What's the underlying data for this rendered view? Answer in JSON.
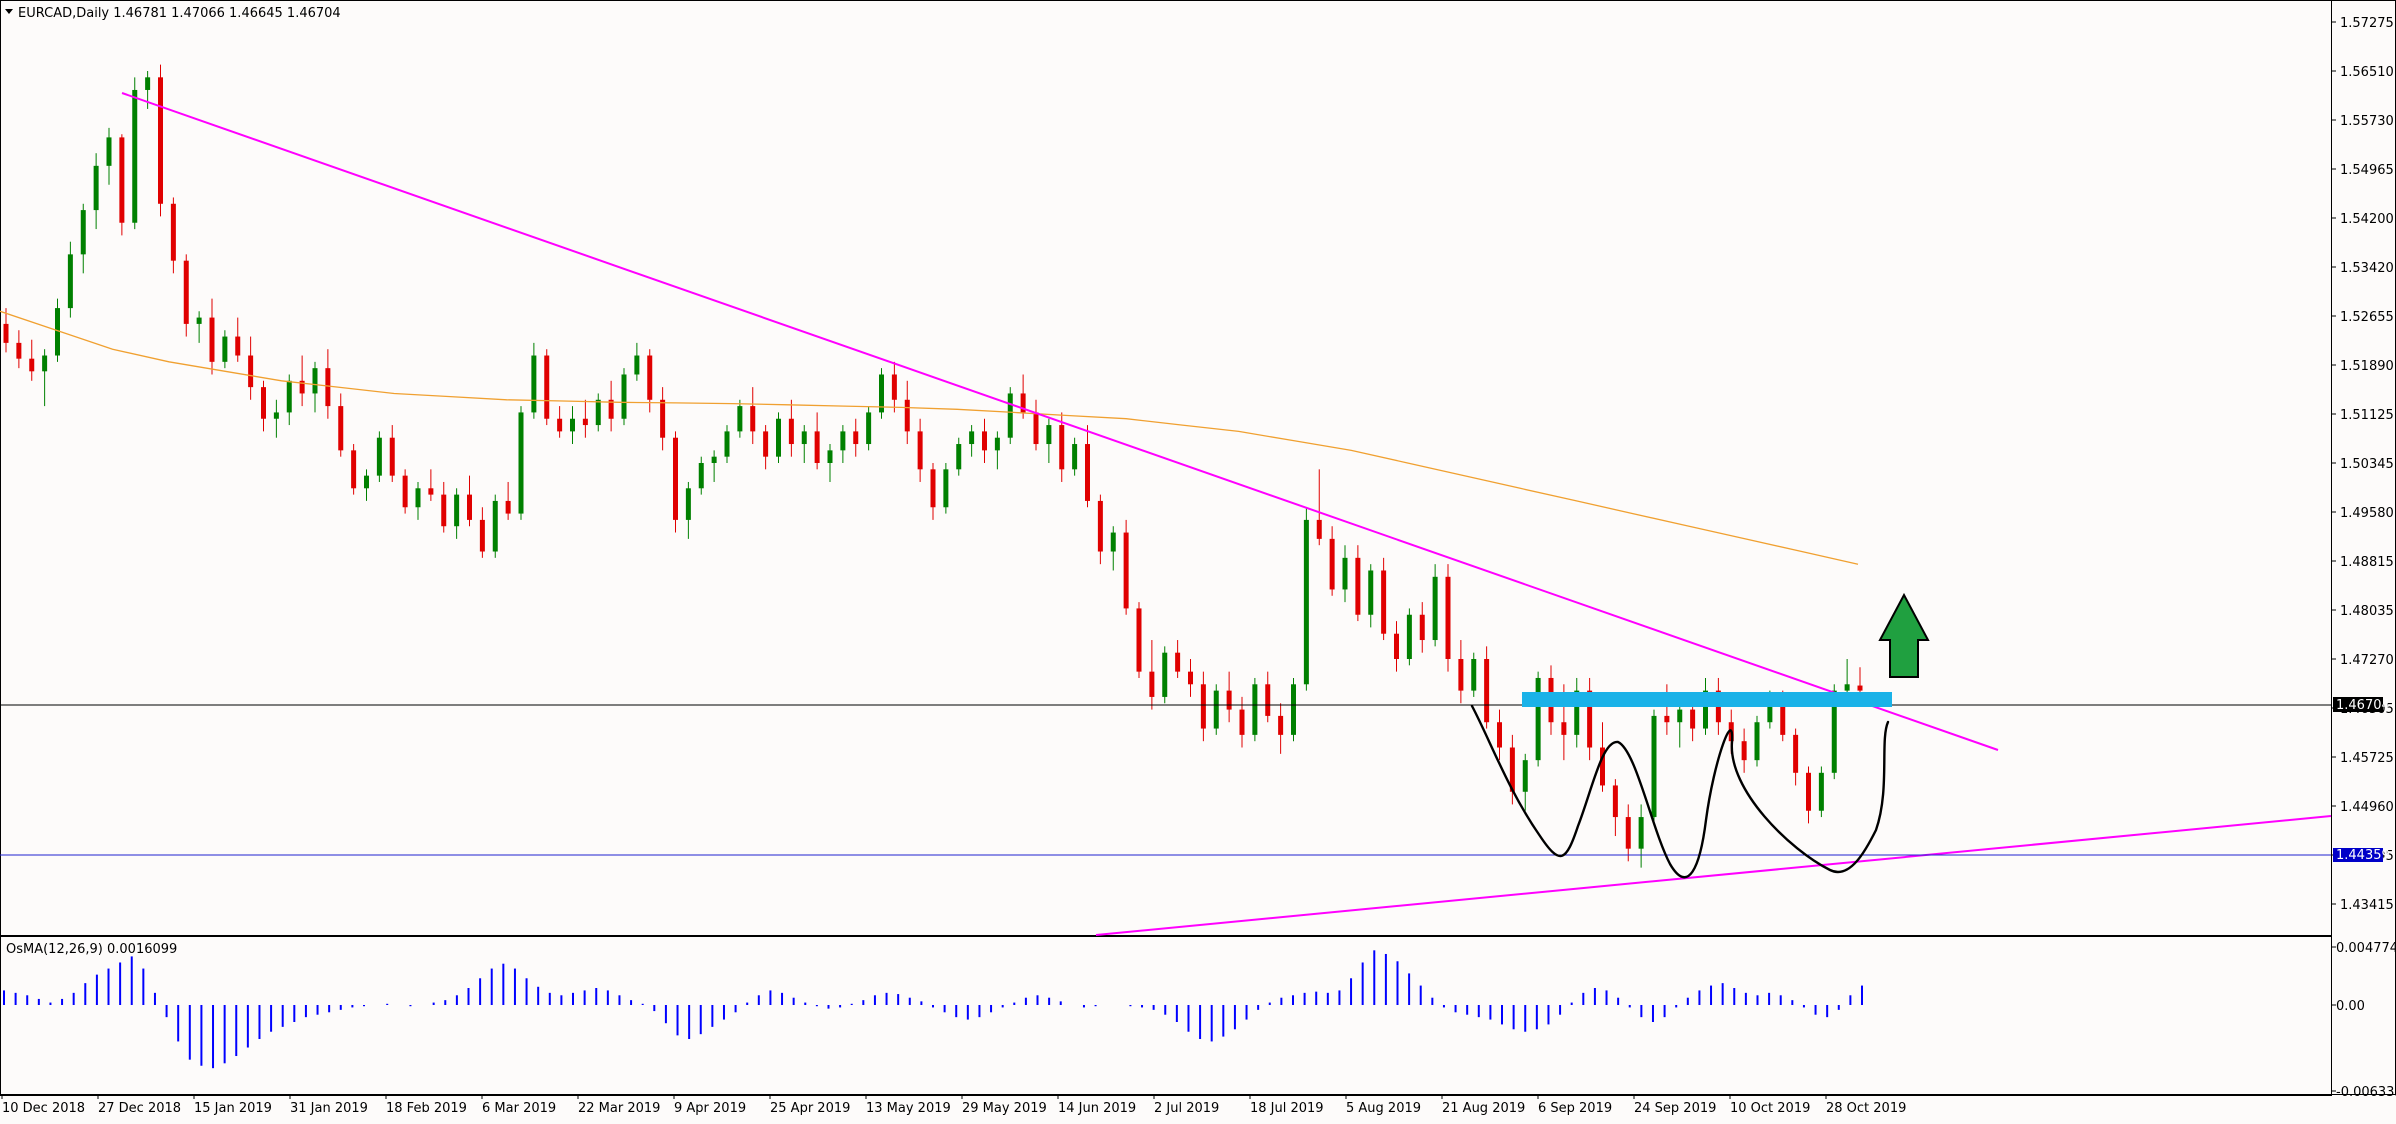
{
  "header": {
    "symbol_line": "EURCAD,Daily  1.46781 1.47066 1.46645 1.46704",
    "menu_icon": "triangle-down-icon"
  },
  "price_axis": {
    "labels": [
      "1.57275",
      "1.56510",
      "1.55730",
      "1.54965",
      "1.54200",
      "1.53420",
      "1.52655",
      "1.51890",
      "1.51125",
      "1.50345",
      "1.49580",
      "1.48815",
      "1.48035",
      "1.47270",
      "1.46505",
      "1.45725",
      "1.44960",
      "1.44195",
      "1.43415"
    ],
    "current_price_tag": "1.46704",
    "horizontal_level_tag": "1.44359"
  },
  "indicator": {
    "label": "OsMA(12,26,9) 0.0016099",
    "axis_labels": [
      "0.0047741",
      "0.00",
      "-0.0063336"
    ],
    "color": "#0000ff"
  },
  "time_axis": {
    "labels": [
      "10 Dec 2018",
      "27 Dec 2018",
      "15 Jan 2019",
      "31 Jan 2019",
      "18 Feb 2019",
      "6 Mar 2019",
      "22 Mar 2019",
      "9 Apr 2019",
      "25 Apr 2019",
      "13 May 2019",
      "29 May 2019",
      "14 Jun 2019",
      "2 Jul 2019",
      "18 Jul 2019",
      "5 Aug 2019",
      "21 Aug 2019",
      "6 Sep 2019",
      "24 Sep 2019",
      "10 Oct 2019",
      "28 Oct 2019"
    ]
  },
  "colors": {
    "bull": "#008000",
    "bear": "#e00000",
    "trendline": "#ff00ff",
    "ma": "#f0a030",
    "resistance_zone": "#1ab2e8",
    "support_level": "#0000ff",
    "arrow": "#20a040"
  },
  "annotations": {
    "breakout_arrow_icon": "up-arrow-icon",
    "pattern": "hand-drawn-curve"
  },
  "chart_data": {
    "type": "candlestick",
    "symbol": "EURCAD",
    "timeframe": "Daily",
    "last": {
      "open": 1.46781,
      "high": 1.47066,
      "low": 1.46645,
      "close": 1.46704
    },
    "ylim": [
      1.43,
      1.58
    ],
    "levels": {
      "current": 1.46704,
      "support": 1.44359
    },
    "ohlc": [
      [
        1.525,
        1.5275,
        1.5205,
        1.522
      ],
      [
        1.522,
        1.524,
        1.518,
        1.5195
      ],
      [
        1.5195,
        1.5225,
        1.516,
        1.5175
      ],
      [
        1.5175,
        1.521,
        1.512,
        1.52
      ],
      [
        1.52,
        1.529,
        1.519,
        1.5275
      ],
      [
        1.5275,
        1.538,
        1.526,
        1.536
      ],
      [
        1.536,
        1.544,
        1.533,
        1.543
      ],
      [
        1.543,
        1.552,
        1.54,
        1.55
      ],
      [
        1.55,
        1.556,
        1.547,
        1.5545
      ],
      [
        1.5545,
        1.555,
        1.539,
        1.541
      ],
      [
        1.541,
        1.564,
        1.54,
        1.562
      ],
      [
        1.562,
        1.565,
        1.559,
        1.564
      ],
      [
        1.564,
        1.566,
        1.542,
        1.544
      ],
      [
        1.544,
        1.545,
        1.533,
        1.535
      ],
      [
        1.535,
        1.536,
        1.523,
        1.525
      ],
      [
        1.525,
        1.527,
        1.522,
        1.526
      ],
      [
        1.526,
        1.529,
        1.517,
        1.519
      ],
      [
        1.519,
        1.524,
        1.518,
        1.523
      ],
      [
        1.523,
        1.526,
        1.519,
        1.52
      ],
      [
        1.52,
        1.523,
        1.513,
        1.515
      ],
      [
        1.515,
        1.516,
        1.508,
        1.51
      ],
      [
        1.51,
        1.513,
        1.507,
        1.511
      ],
      [
        1.511,
        1.517,
        1.509,
        1.516
      ],
      [
        1.516,
        1.52,
        1.512,
        1.514
      ],
      [
        1.514,
        1.519,
        1.511,
        1.518
      ],
      [
        1.518,
        1.521,
        1.51,
        1.512
      ],
      [
        1.512,
        1.514,
        1.504,
        1.505
      ],
      [
        1.505,
        1.506,
        1.498,
        1.499
      ],
      [
        1.499,
        1.502,
        1.497,
        1.501
      ],
      [
        1.501,
        1.508,
        1.5,
        1.507
      ],
      [
        1.507,
        1.509,
        1.5,
        1.501
      ],
      [
        1.501,
        1.502,
        1.495,
        1.496
      ],
      [
        1.496,
        1.5,
        1.494,
        1.499
      ],
      [
        1.499,
        1.502,
        1.497,
        1.498
      ],
      [
        1.498,
        1.5,
        1.492,
        1.493
      ],
      [
        1.493,
        1.499,
        1.491,
        1.498
      ],
      [
        1.498,
        1.501,
        1.493,
        1.494
      ],
      [
        1.494,
        1.496,
        1.488,
        1.489
      ],
      [
        1.489,
        1.498,
        1.488,
        1.497
      ],
      [
        1.497,
        1.5,
        1.494,
        1.495
      ],
      [
        1.495,
        1.512,
        1.494,
        1.511
      ],
      [
        1.511,
        1.522,
        1.51,
        1.52
      ],
      [
        1.52,
        1.521,
        1.509,
        1.51
      ],
      [
        1.51,
        1.512,
        1.507,
        1.508
      ],
      [
        1.508,
        1.512,
        1.506,
        1.51
      ],
      [
        1.51,
        1.513,
        1.507,
        1.509
      ],
      [
        1.509,
        1.514,
        1.508,
        1.513
      ],
      [
        1.513,
        1.516,
        1.508,
        1.51
      ],
      [
        1.51,
        1.518,
        1.509,
        1.517
      ],
      [
        1.517,
        1.522,
        1.516,
        1.52
      ],
      [
        1.52,
        1.521,
        1.511,
        1.513
      ],
      [
        1.513,
        1.515,
        1.505,
        1.507
      ],
      [
        1.507,
        1.508,
        1.492,
        1.494
      ],
      [
        1.494,
        1.5,
        1.491,
        1.499
      ],
      [
        1.499,
        1.504,
        1.498,
        1.503
      ],
      [
        1.503,
        1.505,
        1.5,
        1.504
      ],
      [
        1.504,
        1.509,
        1.503,
        1.508
      ],
      [
        1.508,
        1.513,
        1.507,
        1.512
      ],
      [
        1.512,
        1.515,
        1.506,
        1.508
      ],
      [
        1.508,
        1.509,
        1.502,
        1.504
      ],
      [
        1.504,
        1.511,
        1.503,
        1.51
      ],
      [
        1.51,
        1.513,
        1.504,
        1.506
      ],
      [
        1.506,
        1.509,
        1.503,
        1.508
      ],
      [
        1.508,
        1.511,
        1.502,
        1.503
      ],
      [
        1.503,
        1.506,
        1.5,
        1.505
      ],
      [
        1.505,
        1.509,
        1.503,
        1.508
      ],
      [
        1.508,
        1.51,
        1.504,
        1.506
      ],
      [
        1.506,
        1.512,
        1.505,
        1.511
      ],
      [
        1.511,
        1.518,
        1.51,
        1.517
      ],
      [
        1.517,
        1.519,
        1.511,
        1.513
      ],
      [
        1.513,
        1.516,
        1.506,
        1.508
      ],
      [
        1.508,
        1.51,
        1.5,
        1.502
      ],
      [
        1.502,
        1.503,
        1.494,
        1.496
      ],
      [
        1.496,
        1.503,
        1.495,
        1.502
      ],
      [
        1.502,
        1.507,
        1.501,
        1.506
      ],
      [
        1.506,
        1.509,
        1.504,
        1.508
      ],
      [
        1.508,
        1.51,
        1.503,
        1.505
      ],
      [
        1.505,
        1.508,
        1.502,
        1.507
      ],
      [
        1.507,
        1.515,
        1.506,
        1.514
      ],
      [
        1.514,
        1.517,
        1.51,
        1.511
      ],
      [
        1.511,
        1.513,
        1.505,
        1.506
      ],
      [
        1.506,
        1.51,
        1.503,
        1.509
      ],
      [
        1.509,
        1.511,
        1.5,
        1.502
      ],
      [
        1.502,
        1.507,
        1.501,
        1.506
      ],
      [
        1.506,
        1.509,
        1.496,
        1.497
      ],
      [
        1.497,
        1.498,
        1.487,
        1.489
      ],
      [
        1.489,
        1.493,
        1.486,
        1.492
      ],
      [
        1.492,
        1.494,
        1.479,
        1.48
      ],
      [
        1.48,
        1.481,
        1.469,
        1.47
      ],
      [
        1.47,
        1.475,
        1.464,
        1.466
      ],
      [
        1.466,
        1.474,
        1.465,
        1.473
      ],
      [
        1.473,
        1.475,
        1.469,
        1.47
      ],
      [
        1.47,
        1.472,
        1.466,
        1.468
      ],
      [
        1.468,
        1.47,
        1.459,
        1.461
      ],
      [
        1.461,
        1.468,
        1.46,
        1.467
      ],
      [
        1.467,
        1.47,
        1.462,
        1.464
      ],
      [
        1.464,
        1.466,
        1.458,
        1.46
      ],
      [
        1.46,
        1.469,
        1.459,
        1.468
      ],
      [
        1.468,
        1.47,
        1.462,
        1.463
      ],
      [
        1.463,
        1.465,
        1.457,
        1.46
      ],
      [
        1.46,
        1.469,
        1.459,
        1.468
      ],
      [
        1.468,
        1.496,
        1.467,
        1.494
      ],
      [
        1.494,
        1.502,
        1.49,
        1.491
      ],
      [
        1.491,
        1.493,
        1.482,
        1.483
      ],
      [
        1.483,
        1.49,
        1.481,
        1.488
      ],
      [
        1.488,
        1.49,
        1.478,
        1.479
      ],
      [
        1.479,
        1.487,
        1.477,
        1.486
      ],
      [
        1.486,
        1.488,
        1.475,
        1.476
      ],
      [
        1.476,
        1.478,
        1.47,
        1.472
      ],
      [
        1.472,
        1.48,
        1.471,
        1.479
      ],
      [
        1.479,
        1.481,
        1.473,
        1.475
      ],
      [
        1.475,
        1.487,
        1.474,
        1.485
      ],
      [
        1.485,
        1.487,
        1.47,
        1.472
      ],
      [
        1.472,
        1.475,
        1.465,
        1.467
      ],
      [
        1.467,
        1.473,
        1.466,
        1.472
      ],
      [
        1.472,
        1.474,
        1.461,
        1.462
      ],
      [
        1.462,
        1.464,
        1.456,
        1.458
      ],
      [
        1.458,
        1.46,
        1.449,
        1.451
      ],
      [
        1.451,
        1.457,
        1.448,
        1.456
      ],
      [
        1.456,
        1.47,
        1.455,
        1.469
      ],
      [
        1.469,
        1.471,
        1.46,
        1.462
      ],
      [
        1.462,
        1.468,
        1.456,
        1.46
      ],
      [
        1.46,
        1.469,
        1.458,
        1.467
      ],
      [
        1.467,
        1.469,
        1.456,
        1.458
      ],
      [
        1.458,
        1.462,
        1.451,
        1.452
      ],
      [
        1.452,
        1.453,
        1.444,
        1.447
      ],
      [
        1.447,
        1.449,
        1.44,
        1.442
      ],
      [
        1.442,
        1.449,
        1.439,
        1.447
      ],
      [
        1.447,
        1.464,
        1.446,
        1.463
      ],
      [
        1.463,
        1.468,
        1.46,
        1.462
      ],
      [
        1.462,
        1.465,
        1.458,
        1.464
      ],
      [
        1.464,
        1.466,
        1.459,
        1.461
      ],
      [
        1.461,
        1.469,
        1.46,
        1.467
      ],
      [
        1.467,
        1.469,
        1.46,
        1.462
      ],
      [
        1.462,
        1.464,
        1.457,
        1.459
      ],
      [
        1.459,
        1.461,
        1.454,
        1.456
      ],
      [
        1.456,
        1.463,
        1.455,
        1.462
      ],
      [
        1.462,
        1.467,
        1.461,
        1.466
      ],
      [
        1.466,
        1.467,
        1.459,
        1.46
      ],
      [
        1.46,
        1.461,
        1.452,
        1.454
      ],
      [
        1.454,
        1.455,
        1.446,
        1.448
      ],
      [
        1.448,
        1.455,
        1.447,
        1.454
      ],
      [
        1.454,
        1.468,
        1.453,
        1.467
      ],
      [
        1.467,
        1.472,
        1.466,
        1.468
      ],
      [
        1.4678,
        1.4707,
        1.4665,
        1.467
      ]
    ],
    "ma_series": [
      1.527,
      1.524,
      1.521,
      1.519,
      1.5175,
      1.516,
      1.515,
      1.514,
      1.5135,
      1.513,
      1.5128,
      1.5126,
      1.5125,
      1.5124,
      1.5122,
      1.512,
      1.5118,
      1.5115,
      1.511,
      1.5105,
      1.51,
      1.509,
      1.508,
      1.5065,
      1.505,
      1.503,
      1.501,
      1.499,
      1.497,
      1.495,
      1.493,
      1.491,
      1.489,
      1.487
    ],
    "osma": [
      0.0012,
      0.001,
      0.0008,
      0.0005,
      0.0002,
      0.0005,
      0.001,
      0.0018,
      0.0025,
      0.003,
      0.0035,
      0.004,
      0.003,
      0.001,
      -0.001,
      -0.003,
      -0.0045,
      -0.005,
      -0.0052,
      -0.0048,
      -0.0042,
      -0.0035,
      -0.0028,
      -0.0022,
      -0.0018,
      -0.0014,
      -0.001,
      -0.0008,
      -0.0006,
      -0.0004,
      -0.0002,
      -0.0001,
      0.0,
      0.0001,
      0.0,
      -0.0001,
      0.0,
      0.0002,
      0.0004,
      0.0008,
      0.0014,
      0.0022,
      0.003,
      0.0034,
      0.003,
      0.0022,
      0.0015,
      0.001,
      0.0008,
      0.001,
      0.0012,
      0.0014,
      0.0012,
      0.0008,
      0.0004,
      0.0001,
      -0.0005,
      -0.0015,
      -0.0025,
      -0.0028,
      -0.0024,
      -0.0018,
      -0.0012,
      -0.0006,
      0.0002,
      0.0008,
      0.0012,
      0.001,
      0.0006,
      0.0002,
      -0.0001,
      -0.0003,
      -0.0002,
      0.0001,
      0.0004,
      0.0008,
      0.001,
      0.0009,
      0.0006,
      0.0003,
      -0.0002,
      -0.0006,
      -0.001,
      -0.0012,
      -0.001,
      -0.0006,
      -0.0002,
      0.0002,
      0.0006,
      0.0008,
      0.0006,
      0.0003,
      0.0,
      -0.0002,
      -0.0001,
      0.0,
      0.0,
      -0.0001,
      -0.0002,
      -0.0004,
      -0.0008,
      -0.0014,
      -0.0022,
      -0.0028,
      -0.003,
      -0.0026,
      -0.002,
      -0.0012,
      -0.0004,
      0.0002,
      0.0006,
      0.0008,
      0.001,
      0.0011,
      0.001,
      0.0012,
      0.0022,
      0.0035,
      0.0045,
      0.0042,
      0.0036,
      0.0026,
      0.0016,
      0.0006,
      -0.0002,
      -0.0006,
      -0.0008,
      -0.001,
      -0.0012,
      -0.0016,
      -0.002,
      -0.0022,
      -0.002,
      -0.0016,
      -0.0008,
      0.0002,
      0.001,
      0.0014,
      0.0012,
      0.0006,
      -0.0002,
      -0.001,
      -0.0014,
      -0.001,
      -0.0002,
      0.0006,
      0.0012,
      0.0016,
      0.0018,
      0.0014,
      0.001,
      0.0008,
      0.001,
      0.0008,
      0.0004,
      -0.0002,
      -0.0008,
      -0.001,
      -0.0004,
      0.0008,
      0.0016
    ]
  }
}
